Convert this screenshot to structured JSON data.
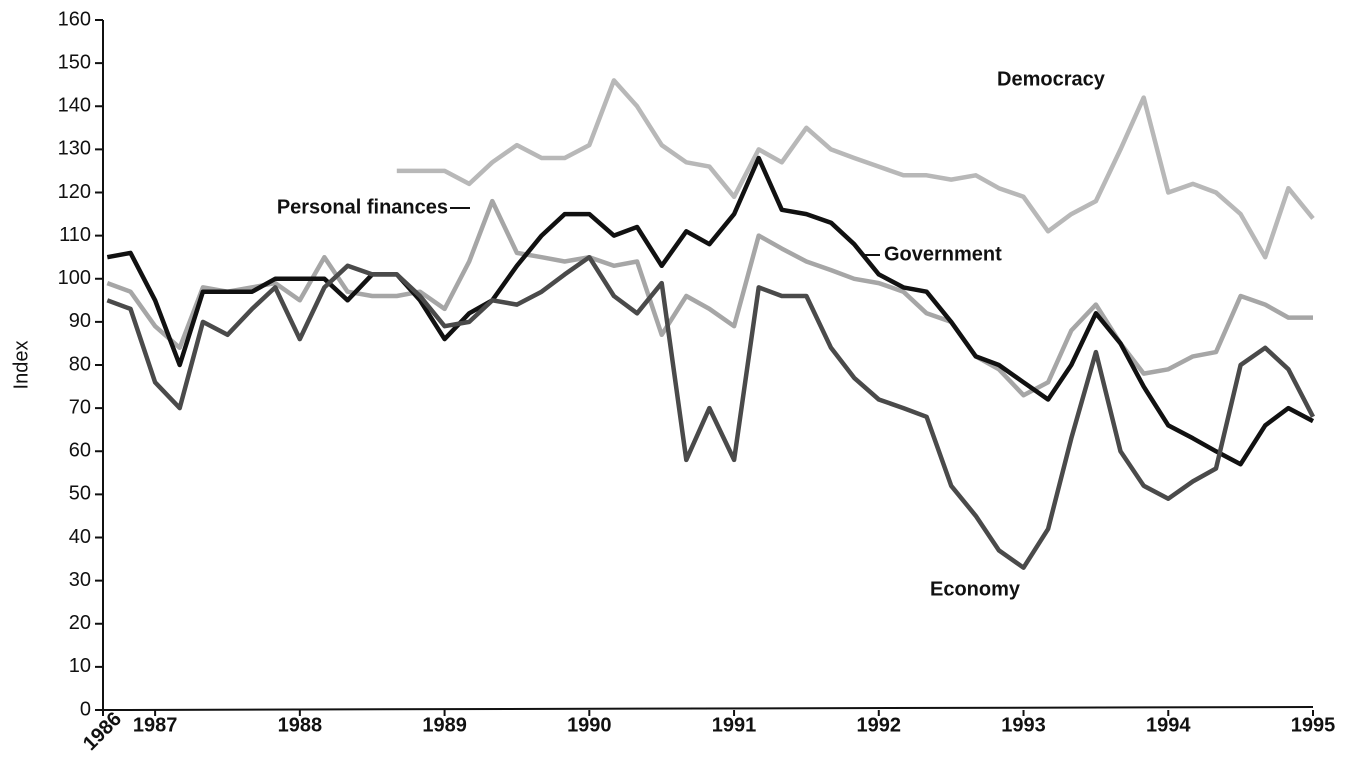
{
  "chart_data": {
    "type": "line",
    "y_label": "Index",
    "x": [
      1986.67,
      1986.83,
      1987.0,
      1987.17,
      1987.33,
      1987.5,
      1987.67,
      1987.83,
      1988.0,
      1988.17,
      1988.33,
      1988.5,
      1988.67,
      1988.83,
      1989.0,
      1989.17,
      1989.33,
      1989.5,
      1989.67,
      1989.83,
      1990.0,
      1990.17,
      1990.33,
      1990.5,
      1990.67,
      1990.83,
      1991.0,
      1991.17,
      1991.33,
      1991.5,
      1991.67,
      1991.83,
      1992.0,
      1992.17,
      1992.33,
      1992.5,
      1992.67,
      1992.83,
      1993.0,
      1993.17,
      1993.33,
      1993.5,
      1993.67,
      1993.83,
      1994.0,
      1994.17,
      1994.33,
      1994.5,
      1994.67,
      1994.83,
      1995.0
    ],
    "series": [
      {
        "name": "Democracy",
        "color": "#b8b8b8",
        "values": [
          null,
          null,
          null,
          null,
          null,
          null,
          null,
          null,
          null,
          null,
          null,
          null,
          125,
          125,
          125,
          122,
          127,
          131,
          128,
          128,
          131,
          146,
          140,
          131,
          127,
          126,
          119,
          130,
          127,
          135,
          130,
          128,
          126,
          124,
          124,
          123,
          124,
          121,
          119,
          111,
          115,
          118,
          130,
          142,
          120,
          122,
          120,
          115,
          105,
          121,
          114
        ]
      },
      {
        "name": "Personal finances",
        "color": "#a6a6a6",
        "values": [
          99,
          97,
          89,
          84,
          98,
          97,
          98,
          99,
          95,
          105,
          97,
          96,
          96,
          97,
          93,
          104,
          118,
          106,
          105,
          104,
          105,
          103,
          104,
          87,
          96,
          93,
          89,
          110,
          107,
          104,
          102,
          100,
          99,
          97,
          92,
          90,
          82,
          79,
          73,
          76,
          88,
          94,
          85,
          78,
          79,
          82,
          83,
          96,
          94,
          91,
          91
        ]
      },
      {
        "name": "Government",
        "color": "#111111",
        "values": [
          105,
          106,
          95,
          80,
          97,
          97,
          97,
          100,
          100,
          100,
          95,
          101,
          101,
          95,
          86,
          92,
          95,
          103,
          110,
          115,
          115,
          110,
          112,
          103,
          111,
          108,
          115,
          128,
          116,
          115,
          113,
          108,
          101,
          98,
          97,
          90,
          82,
          80,
          76,
          72,
          80,
          92,
          85,
          75,
          66,
          63,
          60,
          57,
          66,
          70,
          67
        ]
      },
      {
        "name": "Economy",
        "color": "#4a4a4a",
        "values": [
          95,
          93,
          76,
          70,
          90,
          87,
          93,
          98,
          86,
          98,
          103,
          101,
          101,
          96,
          89,
          90,
          95,
          94,
          97,
          101,
          105,
          96,
          92,
          99,
          58,
          70,
          58,
          98,
          96,
          96,
          84,
          77,
          72,
          70,
          68,
          52,
          45,
          37,
          33,
          42,
          63,
          83,
          60,
          52,
          49,
          53,
          56,
          80,
          84,
          79,
          68
        ]
      }
    ],
    "xlim": [
      1986.64,
      1995
    ],
    "xticks": [
      {
        "value": 1986.64,
        "label": "1986"
      },
      1987,
      1988,
      1989,
      1990,
      1991,
      1992,
      1993,
      1994,
      1995
    ],
    "ylim": [
      0,
      160
    ],
    "yticks": [
      0,
      10,
      20,
      30,
      40,
      50,
      60,
      70,
      80,
      90,
      100,
      110,
      120,
      130,
      140,
      150,
      160
    ]
  }
}
